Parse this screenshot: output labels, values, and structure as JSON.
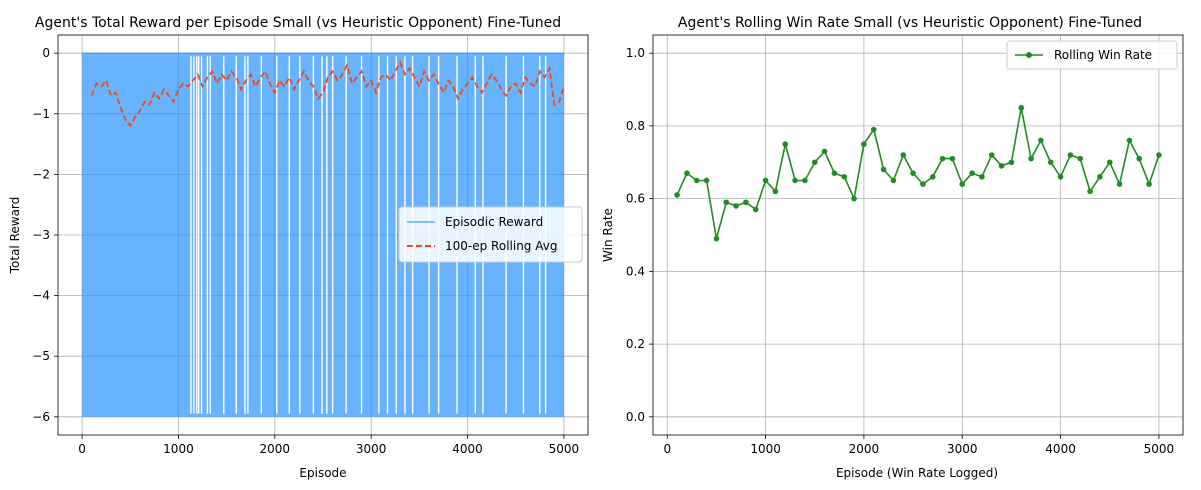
{
  "chart_data": [
    {
      "type": "line",
      "title": "Agent's Total Reward per Episode Small (vs Heuristic Opponent) Fine-Tuned",
      "xlabel": "Episode",
      "ylabel": "Total Reward",
      "xlim": [
        -250,
        5250
      ],
      "ylim": [
        -6.3,
        0.3
      ],
      "xticks": [
        0,
        1000,
        2000,
        3000,
        4000,
        5000
      ],
      "yticks": [
        0,
        -1,
        -2,
        -3,
        -4,
        -5,
        -6
      ],
      "grid": true,
      "legend_placement": "center-right",
      "series": [
        {
          "name": "Episodic Reward",
          "style": "solid",
          "color": "#1f8fff",
          "x_range": [
            0,
            5000
          ],
          "value_range": [
            -6,
            0
          ]
        },
        {
          "name": "100-ep Rolling Avg",
          "style": "dashed",
          "color": "#f04a12",
          "x": [
            100,
            150,
            200,
            250,
            300,
            350,
            400,
            450,
            500,
            550,
            600,
            650,
            700,
            750,
            800,
            850,
            900,
            950,
            1000,
            1050,
            1100,
            1150,
            1200,
            1250,
            1300,
            1350,
            1400,
            1450,
            1500,
            1550,
            1600,
            1650,
            1700,
            1750,
            1800,
            1850,
            1900,
            1950,
            2000,
            2050,
            2100,
            2150,
            2200,
            2250,
            2300,
            2350,
            2400,
            2450,
            2500,
            2550,
            2600,
            2650,
            2700,
            2750,
            2800,
            2850,
            2900,
            2950,
            3000,
            3050,
            3100,
            3150,
            3200,
            3250,
            3300,
            3350,
            3400,
            3450,
            3500,
            3550,
            3600,
            3650,
            3700,
            3750,
            3800,
            3850,
            3900,
            3950,
            4000,
            4050,
            4100,
            4150,
            4200,
            4250,
            4300,
            4350,
            4400,
            4450,
            4500,
            4550,
            4600,
            4650,
            4700,
            4750,
            4800,
            4850,
            4900,
            4950,
            5000
          ],
          "values": [
            -0.7,
            -0.5,
            -0.55,
            -0.45,
            -0.7,
            -0.65,
            -0.9,
            -1.1,
            -1.2,
            -1.05,
            -0.95,
            -0.8,
            -0.85,
            -0.65,
            -0.75,
            -0.6,
            -0.7,
            -0.8,
            -0.6,
            -0.5,
            -0.55,
            -0.45,
            -0.35,
            -0.55,
            -0.4,
            -0.3,
            -0.5,
            -0.35,
            -0.45,
            -0.3,
            -0.4,
            -0.6,
            -0.45,
            -0.35,
            -0.55,
            -0.4,
            -0.3,
            -0.5,
            -0.65,
            -0.45,
            -0.55,
            -0.4,
            -0.6,
            -0.45,
            -0.3,
            -0.45,
            -0.55,
            -0.75,
            -0.65,
            -0.4,
            -0.3,
            -0.45,
            -0.35,
            -0.2,
            -0.5,
            -0.4,
            -0.3,
            -0.55,
            -0.45,
            -0.65,
            -0.4,
            -0.35,
            -0.45,
            -0.3,
            -0.15,
            -0.35,
            -0.25,
            -0.4,
            -0.55,
            -0.3,
            -0.45,
            -0.35,
            -0.5,
            -0.65,
            -0.45,
            -0.55,
            -0.75,
            -0.6,
            -0.5,
            -0.4,
            -0.55,
            -0.65,
            -0.5,
            -0.35,
            -0.45,
            -0.6,
            -0.7,
            -0.55,
            -0.5,
            -0.65,
            -0.4,
            -0.5,
            -0.55,
            -0.3,
            -0.4,
            -0.25,
            -0.85,
            -0.8,
            -0.55
          ]
        }
      ]
    },
    {
      "type": "line",
      "title": "Agent's Rolling Win Rate Small (vs Heuristic Opponent) Fine-Tuned",
      "xlabel": "Episode (Win Rate Logged)",
      "ylabel": "Win Rate",
      "xlim": [
        -145,
        5245
      ],
      "ylim": [
        -0.05,
        1.05
      ],
      "xticks": [
        0,
        1000,
        2000,
        3000,
        4000,
        5000
      ],
      "yticks": [
        0.0,
        0.2,
        0.4,
        0.6,
        0.8,
        1.0
      ],
      "grid": true,
      "legend_placement": "top-right",
      "series": [
        {
          "name": "Rolling Win Rate",
          "style": "solid-marker",
          "color": "#228b22",
          "x": [
            100,
            200,
            300,
            400,
            500,
            600,
            700,
            800,
            900,
            1000,
            1100,
            1200,
            1300,
            1400,
            1500,
            1600,
            1700,
            1800,
            1900,
            2000,
            2100,
            2200,
            2300,
            2400,
            2500,
            2600,
            2700,
            2800,
            2900,
            3000,
            3100,
            3200,
            3300,
            3400,
            3500,
            3600,
            3700,
            3800,
            3900,
            4000,
            4100,
            4200,
            4300,
            4400,
            4500,
            4600,
            4700,
            4800,
            4900,
            5000
          ],
          "values": [
            0.61,
            0.67,
            0.65,
            0.65,
            0.49,
            0.59,
            0.58,
            0.59,
            0.57,
            0.65,
            0.62,
            0.75,
            0.65,
            0.65,
            0.7,
            0.73,
            0.67,
            0.66,
            0.6,
            0.75,
            0.79,
            0.68,
            0.65,
            0.72,
            0.67,
            0.64,
            0.66,
            0.71,
            0.71,
            0.64,
            0.67,
            0.66,
            0.72,
            0.69,
            0.7,
            0.85,
            0.71,
            0.76,
            0.7,
            0.66,
            0.72,
            0.71,
            0.62,
            0.66,
            0.7,
            0.64,
            0.76,
            0.71,
            0.64,
            0.72
          ]
        }
      ]
    }
  ]
}
